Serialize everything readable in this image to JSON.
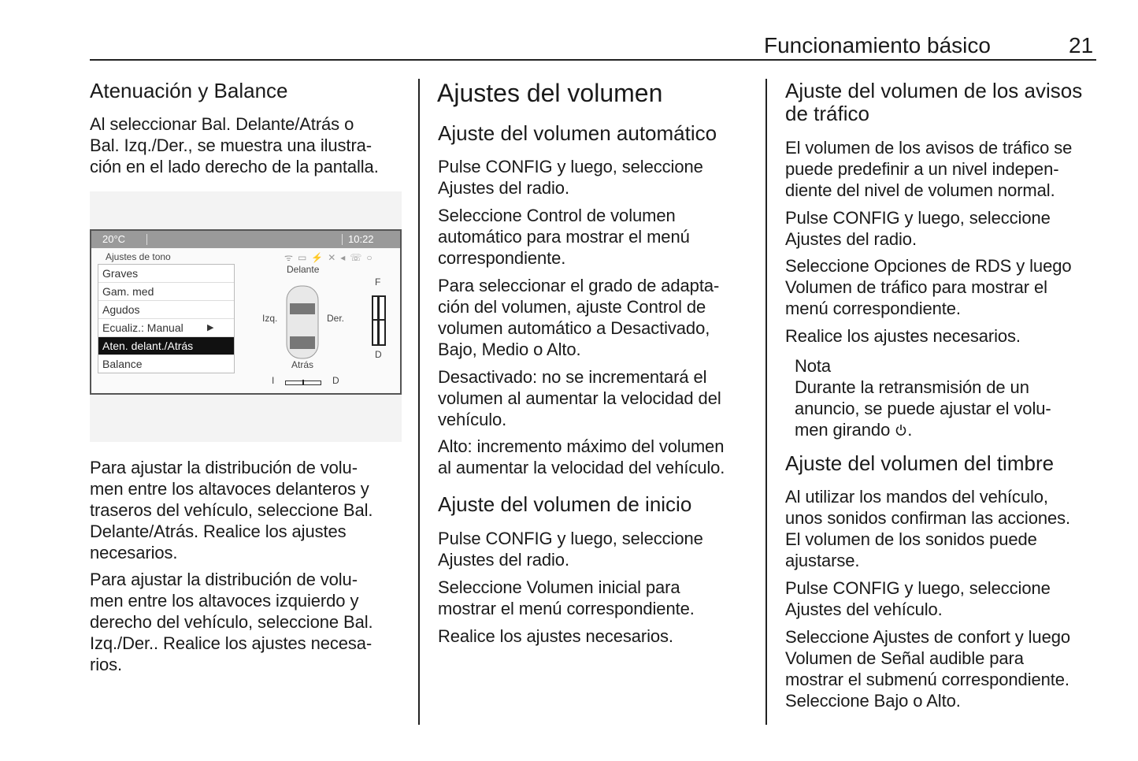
{
  "header": {
    "title": "Funcionamiento básico",
    "page_number": "21"
  },
  "left": {
    "heading": "Atenuación y Balance",
    "p1": "Al seleccionar Bal. Delante/Atrás o\nBal. Izq./Der., se muestra una ilustra-\nción en el lado derecho de la pantalla.",
    "p2": "Para ajustar la distribución de volu-\nmen entre los altavoces delanteros y\ntraseros del vehículo, seleccione Bal.\nDelante/Atrás. Realice los ajustes\nnecesarios.",
    "p3": "Para ajustar la distribución de volu-\nmen entre los altavoces izquierdo y\nderecho del vehículo, seleccione Bal.\nIzq./Der.. Realice los ajustes necesa-\nrios."
  },
  "figure": {
    "temperature": "20°C",
    "time": "10:22",
    "menu_title": "Ajustes de tono",
    "menu_items": [
      "Graves",
      "Gam. med",
      "Agudos",
      "Ecualiz.: Manual",
      "Aten. delant./Atrás",
      "Balance"
    ],
    "selected_item": "Aten. delant./Atrás",
    "label_front": "Delante",
    "label_rear": "Atrás",
    "label_left": "Izq.",
    "label_right": "Der.",
    "fader_top": "F",
    "fader_bottom": "D",
    "balance_left": "I",
    "balance_right": "D"
  },
  "middle": {
    "title": "Ajustes del volumen",
    "h_auto": "Ajuste del volumen automático",
    "p1": "Pulse CONFIG y luego, seleccione\nAjustes del radio.",
    "p2": "Seleccione Control de volumen\nautomático para mostrar el menú\ncorrespondiente.",
    "p3": "Para seleccionar el grado de adapta-\nción del volumen, ajuste Control de\nvolumen automático a Desactivado,\nBajo, Medio o Alto.",
    "p4": "Desactivado: no se incrementará el\nvolumen al aumentar la velocidad del\nvehículo.",
    "p5": "Alto: incremento máximo del volumen\nal aumentar la velocidad del vehículo.",
    "h_start": "Ajuste del volumen de inicio",
    "p6": "Pulse CONFIG y luego, seleccione\nAjustes del radio.",
    "p7": "Seleccione Volumen inicial para\nmostrar el menú correspondiente.",
    "p8": "Realice los ajustes necesarios."
  },
  "right": {
    "h_traffic": "Ajuste del volumen de los avisos\nde tráfico",
    "p1": "El volumen de los avisos de tráfico se\npuede predefinir a un nivel indepen-\ndiente del nivel de volumen normal.",
    "p2": "Pulse CONFIG y luego, seleccione\nAjustes del radio.",
    "p3": "Seleccione Opciones de RDS y luego\nVolumen de tráfico para mostrar el\nmenú correspondiente.",
    "p4": "Realice los ajustes necesarios.",
    "note_title": "Nota",
    "note_text": "Durante la retransmisión de un\nanuncio, se puede ajustar el volu-",
    "note_last": "men girando ",
    "note_end": ".",
    "note_icon": "power-knob-icon",
    "h_chime": "Ajuste del volumen del timbre",
    "p5": "Al utilizar los mandos del vehículo,\nunos sonidos confirman las acciones.\nEl volumen de los sonidos puede\najustarse.",
    "p6": "Pulse CONFIG y luego, seleccione\nAjustes del vehículo.",
    "p7": "Seleccione Ajustes de confort y luego\nVolumen de Señal audible para\nmostrar el submenú correspondiente.\nSeleccione Bajo o Alto."
  }
}
